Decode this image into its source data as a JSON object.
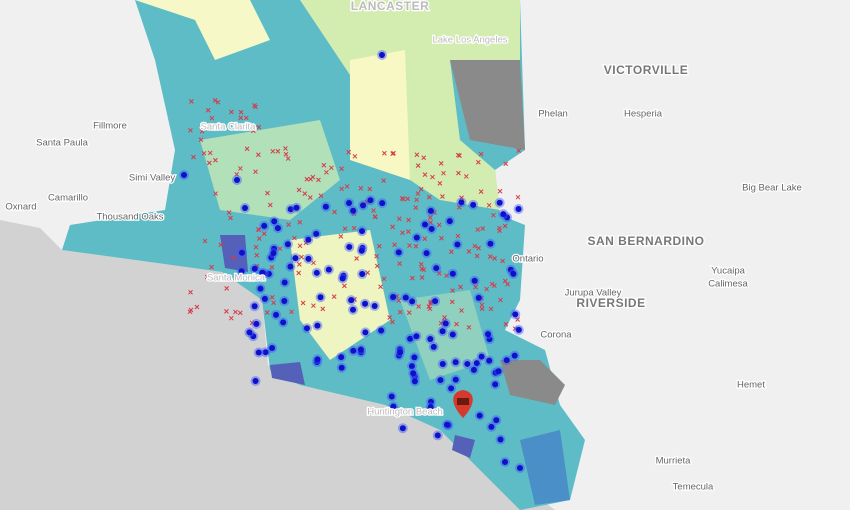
{
  "map": {
    "labels": [
      "LANCASTER",
      "Lake Los Angeles",
      "VICTORVILLE",
      "Phelan",
      "Hesperia",
      "Fillmore",
      "Santa Paula",
      "Simi Valley",
      "Camarillo",
      "Oxnard",
      "Thousand Oaks",
      "Big Bear Lake",
      "SAN BERNARDINO",
      "Ontario",
      "Yucaipa",
      "Calimesa",
      "Jurupa Valley",
      "RIVERSIDE",
      "Corona",
      "Hemet",
      "Murrieta",
      "Temecula",
      "Santa Clarita",
      "Santa Monica",
      "Huntington Beach"
    ]
  }
}
